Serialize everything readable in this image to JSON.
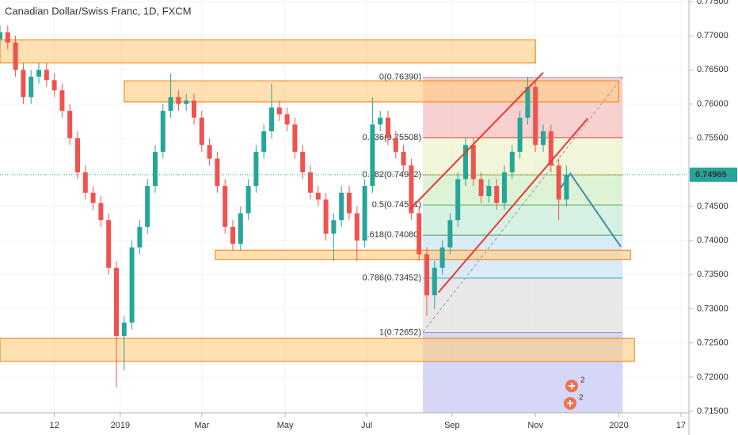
{
  "chart_data": {
    "type": "candlestick",
    "title": "Canadian Dollar/Swiss Franc, 1D, FXCM",
    "xlim": [
      0,
      355.1
    ],
    "ylim": [
      0.71477,
      0.77523
    ],
    "xticks": [
      {
        "value": 28,
        "label": "12"
      },
      {
        "value": 62,
        "label": "2019"
      },
      {
        "value": 104,
        "label": "Mar"
      },
      {
        "value": 147,
        "label": "May"
      },
      {
        "value": 189,
        "label": "Jul"
      },
      {
        "value": 233,
        "label": "Sep"
      },
      {
        "value": 276,
        "label": "Nov"
      },
      {
        "value": 319,
        "label": "2020"
      },
      {
        "value": 351,
        "label": "17"
      }
    ],
    "yticks": [
      {
        "value": 0.715,
        "label": "0.71500"
      },
      {
        "value": 0.72,
        "label": "0.72000"
      },
      {
        "value": 0.725,
        "label": "0.72500"
      },
      {
        "value": 0.73,
        "label": "0.73000"
      },
      {
        "value": 0.735,
        "label": "0.73500"
      },
      {
        "value": 0.74,
        "label": "0.74000"
      },
      {
        "value": 0.745,
        "label": "0.74500"
      },
      {
        "value": 0.75,
        "label": "0.75000"
      },
      {
        "value": 0.755,
        "label": "0.75500"
      },
      {
        "value": 0.76,
        "label": "0.76000"
      },
      {
        "value": 0.765,
        "label": "0.76500"
      },
      {
        "value": 0.77,
        "label": "0.77000"
      },
      {
        "value": 0.775,
        "label": "0.77500"
      }
    ],
    "grid": true,
    "up_color": "#26a69a",
    "down_color": "#ef5350",
    "x": [
      0,
      4,
      8,
      12,
      16,
      20,
      24,
      28,
      32,
      36,
      40,
      44,
      48,
      52,
      56,
      60,
      64,
      68,
      72,
      76,
      80,
      84,
      88,
      92,
      96,
      100,
      104,
      108,
      112,
      116,
      120,
      124,
      128,
      132,
      136,
      140,
      144,
      148,
      152,
      156,
      160,
      164,
      168,
      172,
      176,
      180,
      184,
      188,
      192,
      196,
      200,
      204,
      208,
      212,
      216,
      220,
      224,
      228,
      232,
      236,
      240,
      244,
      248,
      252,
      256,
      260,
      264,
      268,
      272,
      276,
      280,
      284,
      288,
      292
    ],
    "open": [
      0.7695,
      0.7705,
      0.769,
      0.765,
      0.761,
      0.764,
      0.765,
      0.7635,
      0.762,
      0.759,
      0.755,
      0.75,
      0.747,
      0.7455,
      0.743,
      0.736,
      0.726,
      0.728,
      0.739,
      0.742,
      0.748,
      0.753,
      0.759,
      0.761,
      0.76,
      0.7605,
      0.758,
      0.754,
      0.752,
      0.748,
      0.742,
      0.7395,
      0.744,
      0.748,
      0.753,
      0.756,
      0.7595,
      0.7585,
      0.757,
      0.753,
      0.75,
      0.747,
      0.746,
      0.741,
      0.743,
      0.747,
      0.744,
      0.74,
      0.748,
      0.757,
      0.758,
      0.755,
      0.753,
      0.751,
      0.744,
      0.738,
      0.732,
      0.736,
      0.739,
      0.743,
      0.749,
      0.754,
      0.749,
      0.7465,
      0.748,
      0.7455,
      0.75,
      0.753,
      0.758,
      0.7625,
      0.754,
      0.756,
      0.751,
      0.746
    ],
    "high": [
      0.7715,
      0.7715,
      0.77,
      0.766,
      0.765,
      0.766,
      0.766,
      0.7645,
      0.763,
      0.76,
      0.756,
      0.751,
      0.748,
      0.7465,
      0.744,
      0.737,
      0.729,
      0.74,
      0.743,
      0.749,
      0.754,
      0.76,
      0.7645,
      0.762,
      0.7615,
      0.7615,
      0.759,
      0.755,
      0.753,
      0.749,
      0.743,
      0.745,
      0.749,
      0.754,
      0.757,
      0.763,
      0.7605,
      0.7595,
      0.758,
      0.754,
      0.751,
      0.748,
      0.747,
      0.744,
      0.748,
      0.748,
      0.745,
      0.749,
      0.761,
      0.759,
      0.759,
      0.756,
      0.754,
      0.752,
      0.745,
      0.739,
      0.737,
      0.74,
      0.744,
      0.75,
      0.755,
      0.755,
      0.75,
      0.749,
      0.749,
      0.751,
      0.754,
      0.759,
      0.764,
      0.7635,
      0.757,
      0.757,
      0.752,
      0.751
    ],
    "low": [
      0.7685,
      0.768,
      0.764,
      0.76,
      0.76,
      0.763,
      0.7625,
      0.761,
      0.758,
      0.754,
      0.749,
      0.746,
      0.7445,
      0.742,
      0.735,
      0.7185,
      0.721,
      0.727,
      0.738,
      0.741,
      0.747,
      0.752,
      0.758,
      0.759,
      0.759,
      0.757,
      0.753,
      0.751,
      0.747,
      0.741,
      0.7385,
      0.7385,
      0.743,
      0.747,
      0.752,
      0.755,
      0.7575,
      0.756,
      0.752,
      0.749,
      0.746,
      0.745,
      0.74,
      0.737,
      0.742,
      0.743,
      0.737,
      0.739,
      0.747,
      0.756,
      0.754,
      0.752,
      0.75,
      0.743,
      0.737,
      0.729,
      0.73,
      0.735,
      0.738,
      0.742,
      0.748,
      0.748,
      0.7455,
      0.7455,
      0.7445,
      0.7445,
      0.749,
      0.752,
      0.757,
      0.753,
      0.753,
      0.75,
      0.743,
      0.745
    ],
    "close": [
      0.7705,
      0.769,
      0.765,
      0.761,
      0.764,
      0.765,
      0.7635,
      0.762,
      0.759,
      0.755,
      0.75,
      0.747,
      0.7455,
      0.743,
      0.736,
      0.726,
      0.728,
      0.739,
      0.742,
      0.748,
      0.753,
      0.759,
      0.761,
      0.76,
      0.7605,
      0.758,
      0.754,
      0.752,
      0.748,
      0.742,
      0.7395,
      0.744,
      0.748,
      0.753,
      0.756,
      0.7595,
      0.7585,
      0.757,
      0.753,
      0.75,
      0.747,
      0.746,
      0.741,
      0.743,
      0.747,
      0.744,
      0.74,
      0.748,
      0.757,
      0.758,
      0.755,
      0.753,
      0.751,
      0.744,
      0.738,
      0.732,
      0.736,
      0.739,
      0.743,
      0.749,
      0.754,
      0.749,
      0.7465,
      0.748,
      0.7455,
      0.75,
      0.753,
      0.758,
      0.7625,
      0.754,
      0.756,
      0.751,
      0.746,
      0.74965
    ],
    "last_price": 0.74965,
    "last_color": "#26a69a",
    "zones": [
      {
        "x": [
          0,
          276
        ],
        "price": [
          0.7694,
          0.766
        ]
      },
      {
        "x": [
          64,
          319
        ],
        "price": [
          0.7634,
          0.7603
        ]
      },
      {
        "x": [
          111,
          325
        ],
        "price": [
          0.7386,
          0.7372
        ]
      },
      {
        "x": [
          0,
          327
        ],
        "price": [
          0.7257,
          0.7223
        ]
      }
    ],
    "zone_fill": "#ffcc80",
    "zone_stroke": "#f57c00",
    "fib": {
      "x": [
        218,
        321
      ],
      "below_color": "#d1d1f5",
      "levels": [
        {
          "label": "0(0.76390)",
          "price": 0.7639,
          "line_color": "#9e9e9e",
          "band_color": "#f5c4c4"
        },
        {
          "label": "0.236(0.75508)",
          "price": 0.75508,
          "line_color": "#e53935",
          "band_color": "#eef3cf"
        },
        {
          "label": "0.382(0.74962)",
          "price": 0.74962,
          "line_color": "#c9a43a",
          "band_color": "#d6f0cc"
        },
        {
          "label": "0.5(0.74521)",
          "price": 0.74521,
          "line_color": "#4caf50",
          "band_color": "#cdeedd"
        },
        {
          "label": "0.618(0.74080)",
          "price": 0.7408,
          "line_color": "#43a047",
          "band_color": "#d0e6f4"
        },
        {
          "label": "0.786(0.73452)",
          "price": 0.73452,
          "line_color": "#26a69a",
          "band_color": "#e2e2e2"
        },
        {
          "label": "1(0.72652)",
          "price": 0.72652,
          "line_color": "#9e9e9e",
          "band_color": "#d1d1f5"
        }
      ]
    },
    "lines": [
      {
        "x": [
          211,
          280
        ],
        "price": [
          0.7445,
          0.7646
        ],
        "color": "#e53935",
        "dash": false
      },
      {
        "x": [
          226,
          303
        ],
        "price": [
          0.7324,
          0.7579
        ],
        "color": "#e53935",
        "dash": false
      },
      {
        "x": [
          218,
          321
        ],
        "price": [
          0.7266,
          0.764
        ],
        "color": "#9e9e9e",
        "dash": true
      },
      {
        "x": [
          289,
          294,
          320
        ],
        "price": [
          0.7477,
          0.7498,
          0.7391
        ],
        "color": "#3d8fa6",
        "dash": false
      }
    ],
    "badges": [
      "2",
      "2"
    ]
  }
}
